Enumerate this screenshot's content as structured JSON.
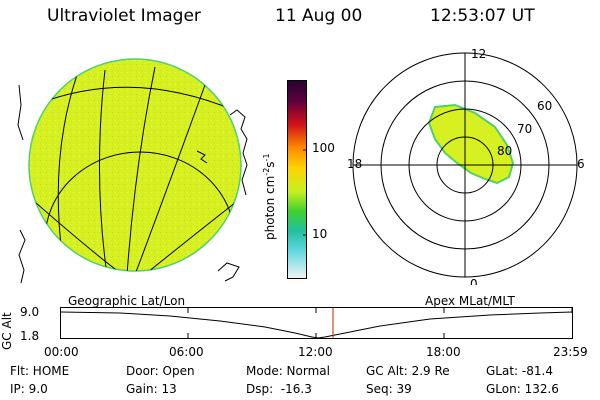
{
  "header": {
    "title": "Ultraviolet Imager",
    "date": "11 Aug 00",
    "time": "12:53:07 UT"
  },
  "colorbar": {
    "label_unit": "photon cm",
    "label_sup1": "-2",
    "label_s": "s",
    "label_sup2": "-1",
    "ticks": [
      "100",
      "10"
    ]
  },
  "polar": {
    "mlt_labels": {
      "top": "12",
      "bottom": "0",
      "left": "18",
      "right": "6"
    },
    "lat_labels": [
      "60",
      "70",
      "80"
    ]
  },
  "timeline": {
    "axis_label": "GC Alt",
    "left_title": "Geographic Lat/Lon",
    "right_title": "Apex MLat/MLT",
    "y_top": "9.0",
    "y_bottom": "1.8",
    "x_ticks": [
      "00:00",
      "06:00",
      "12:00",
      "18:00",
      "23:59"
    ]
  },
  "status": {
    "flt": "Flt: HOME",
    "ip": "IP: 9.0",
    "door": "Door: Open",
    "gain": "Gain: 13",
    "mode": "Mode: Normal",
    "dsp": "Dsp:  -16.3",
    "gcalt": "GC Alt: 2.9 Re",
    "seq": "Seq: 39",
    "glat": "GLat: -81.4",
    "glon": "GLon: 132.6"
  },
  "colors": {
    "aurora_fill": "#d7f021",
    "aurora_edge": "#4fd16a",
    "marker": "#cc2200"
  }
}
